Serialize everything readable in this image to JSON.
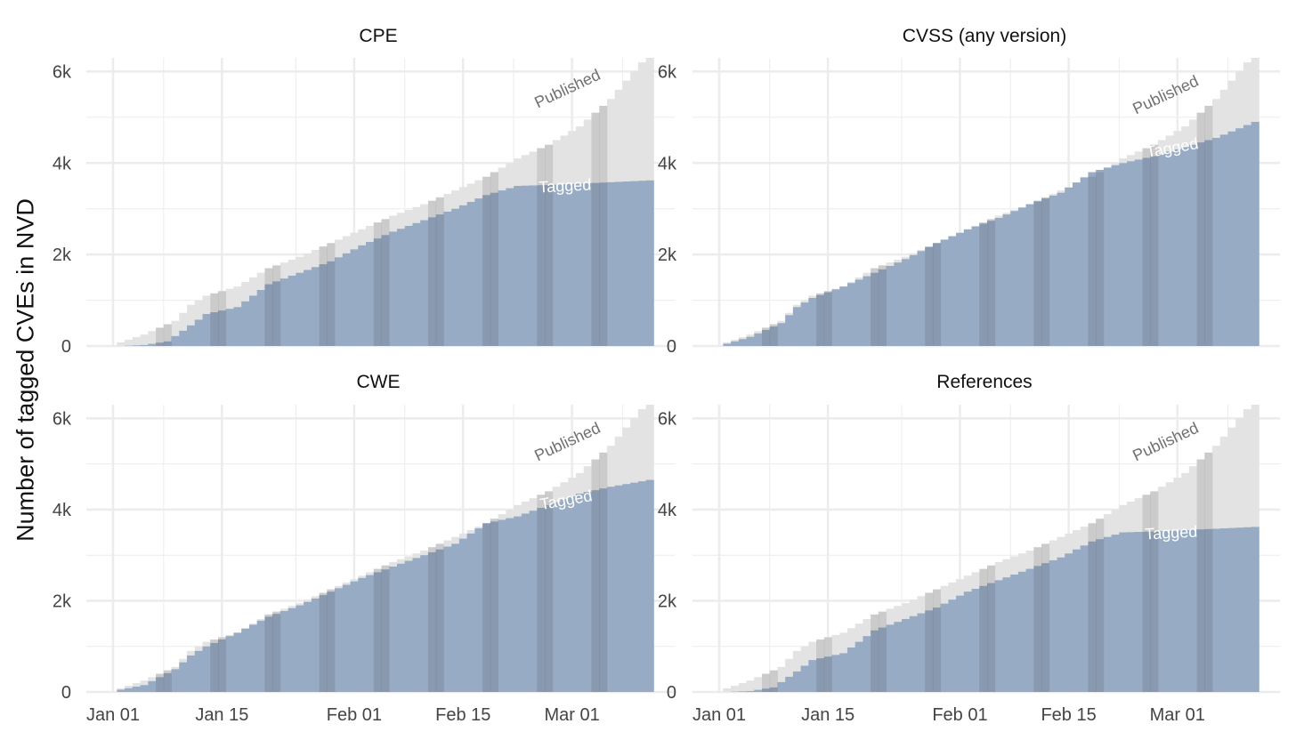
{
  "y_axis_label": "Number of tagged CVEs in NVD",
  "colors": {
    "published_fill": "#e3e3e3",
    "tagged_fill": "#98abc4",
    "weekend_shade": "#000000",
    "grid": "#ececec",
    "background": "#ffffff"
  },
  "chart_data": [
    {
      "type": "area",
      "title": "CPE",
      "x_ticks": [
        "Jan 01",
        "Jan 15",
        "Feb 01",
        "Feb 15",
        "Mar 01"
      ],
      "y_ticks": [
        "0",
        "2k",
        "4k",
        "6k"
      ],
      "ylim": [
        0,
        6300
      ],
      "annotations": [
        "Published",
        "Tagged"
      ],
      "published": [
        [
          1,
          0.08
        ],
        [
          4,
          0.25
        ],
        [
          8,
          0.55
        ],
        [
          10,
          0.9
        ],
        [
          12,
          1.1
        ],
        [
          16,
          1.3
        ],
        [
          20,
          1.7
        ],
        [
          24,
          1.95
        ],
        [
          28,
          2.25
        ],
        [
          32,
          2.55
        ],
        [
          36,
          2.85
        ],
        [
          40,
          3.1
        ],
        [
          44,
          3.4
        ],
        [
          48,
          3.7
        ],
        [
          52,
          4.1
        ],
        [
          56,
          4.4
        ],
        [
          60,
          4.8
        ],
        [
          64,
          5.4
        ],
        [
          68,
          6.2
        ],
        [
          69,
          6.3
        ]
      ],
      "tagged": [
        [
          1,
          0
        ],
        [
          4,
          0.02
        ],
        [
          7,
          0.1
        ],
        [
          10,
          0.45
        ],
        [
          12,
          0.7
        ],
        [
          16,
          0.85
        ],
        [
          20,
          1.35
        ],
        [
          24,
          1.6
        ],
        [
          28,
          1.85
        ],
        [
          32,
          2.2
        ],
        [
          36,
          2.5
        ],
        [
          40,
          2.75
        ],
        [
          44,
          3.0
        ],
        [
          48,
          3.3
        ],
        [
          52,
          3.5
        ],
        [
          56,
          3.52
        ],
        [
          60,
          3.55
        ],
        [
          64,
          3.58
        ],
        [
          69,
          3.62
        ]
      ]
    },
    {
      "type": "area",
      "title": "CVSS (any version)",
      "x_ticks": [
        "Jan 01",
        "Jan 15",
        "Feb 01",
        "Feb 15",
        "Mar 01"
      ],
      "y_ticks": [
        "0",
        "2k",
        "4k",
        "6k"
      ],
      "ylim": [
        0,
        6300
      ],
      "annotations": [
        "Published",
        "Tagged"
      ],
      "published": [
        [
          1,
          0.08
        ],
        [
          4,
          0.25
        ],
        [
          8,
          0.55
        ],
        [
          10,
          0.9
        ],
        [
          12,
          1.1
        ],
        [
          16,
          1.3
        ],
        [
          20,
          1.7
        ],
        [
          24,
          1.95
        ],
        [
          28,
          2.25
        ],
        [
          32,
          2.55
        ],
        [
          36,
          2.85
        ],
        [
          40,
          3.1
        ],
        [
          44,
          3.4
        ],
        [
          48,
          3.7
        ],
        [
          52,
          4.1
        ],
        [
          56,
          4.4
        ],
        [
          60,
          4.8
        ],
        [
          64,
          5.4
        ],
        [
          68,
          6.2
        ],
        [
          69,
          6.3
        ]
      ],
      "tagged": [
        [
          1,
          0.05
        ],
        [
          4,
          0.2
        ],
        [
          8,
          0.5
        ],
        [
          10,
          0.85
        ],
        [
          12,
          1.05
        ],
        [
          16,
          1.3
        ],
        [
          20,
          1.6
        ],
        [
          24,
          1.9
        ],
        [
          28,
          2.25
        ],
        [
          32,
          2.55
        ],
        [
          36,
          2.8
        ],
        [
          40,
          3.1
        ],
        [
          44,
          3.35
        ],
        [
          48,
          3.8
        ],
        [
          52,
          4.0
        ],
        [
          56,
          4.15
        ],
        [
          60,
          4.35
        ],
        [
          64,
          4.55
        ],
        [
          69,
          4.9
        ]
      ]
    },
    {
      "type": "area",
      "title": "CWE",
      "x_ticks": [
        "Jan 01",
        "Jan 15",
        "Feb 01",
        "Feb 15",
        "Mar 01"
      ],
      "y_ticks": [
        "0",
        "2k",
        "4k",
        "6k"
      ],
      "ylim": [
        0,
        6300
      ],
      "annotations": [
        "Published",
        "Tagged"
      ],
      "published": [
        [
          1,
          0.08
        ],
        [
          4,
          0.25
        ],
        [
          8,
          0.55
        ],
        [
          10,
          0.9
        ],
        [
          12,
          1.1
        ],
        [
          16,
          1.3
        ],
        [
          20,
          1.7
        ],
        [
          24,
          1.95
        ],
        [
          28,
          2.25
        ],
        [
          32,
          2.55
        ],
        [
          36,
          2.85
        ],
        [
          40,
          3.1
        ],
        [
          44,
          3.4
        ],
        [
          48,
          3.7
        ],
        [
          52,
          4.1
        ],
        [
          56,
          4.4
        ],
        [
          60,
          4.8
        ],
        [
          64,
          5.4
        ],
        [
          68,
          6.2
        ],
        [
          69,
          6.3
        ]
      ],
      "tagged": [
        [
          1,
          0.05
        ],
        [
          4,
          0.15
        ],
        [
          8,
          0.5
        ],
        [
          10,
          0.8
        ],
        [
          12,
          1.0
        ],
        [
          16,
          1.3
        ],
        [
          20,
          1.65
        ],
        [
          24,
          1.9
        ],
        [
          28,
          2.2
        ],
        [
          32,
          2.5
        ],
        [
          36,
          2.75
        ],
        [
          40,
          3.0
        ],
        [
          44,
          3.25
        ],
        [
          48,
          3.7
        ],
        [
          52,
          3.85
        ],
        [
          56,
          4.1
        ],
        [
          60,
          4.35
        ],
        [
          64,
          4.5
        ],
        [
          69,
          4.65
        ]
      ]
    },
    {
      "type": "area",
      "title": "References",
      "x_ticks": [
        "Jan 01",
        "Jan 15",
        "Feb 01",
        "Feb 15",
        "Mar 01"
      ],
      "y_ticks": [
        "0",
        "2k",
        "4k",
        "6k"
      ],
      "ylim": [
        0,
        6300
      ],
      "annotations": [
        "Published",
        "Tagged"
      ],
      "published": [
        [
          1,
          0.08
        ],
        [
          4,
          0.25
        ],
        [
          8,
          0.55
        ],
        [
          10,
          0.9
        ],
        [
          12,
          1.1
        ],
        [
          16,
          1.3
        ],
        [
          20,
          1.7
        ],
        [
          24,
          1.95
        ],
        [
          28,
          2.25
        ],
        [
          32,
          2.55
        ],
        [
          36,
          2.85
        ],
        [
          40,
          3.1
        ],
        [
          44,
          3.4
        ],
        [
          48,
          3.7
        ],
        [
          52,
          4.1
        ],
        [
          56,
          4.4
        ],
        [
          60,
          4.8
        ],
        [
          64,
          5.4
        ],
        [
          68,
          6.2
        ],
        [
          69,
          6.3
        ]
      ],
      "tagged": [
        [
          1,
          0
        ],
        [
          4,
          0.02
        ],
        [
          7,
          0.1
        ],
        [
          10,
          0.45
        ],
        [
          12,
          0.7
        ],
        [
          16,
          0.85
        ],
        [
          20,
          1.35
        ],
        [
          24,
          1.6
        ],
        [
          28,
          1.85
        ],
        [
          32,
          2.2
        ],
        [
          36,
          2.45
        ],
        [
          40,
          2.7
        ],
        [
          44,
          2.95
        ],
        [
          48,
          3.3
        ],
        [
          52,
          3.5
        ],
        [
          56,
          3.52
        ],
        [
          60,
          3.55
        ],
        [
          64,
          3.58
        ],
        [
          69,
          3.62
        ]
      ]
    }
  ]
}
